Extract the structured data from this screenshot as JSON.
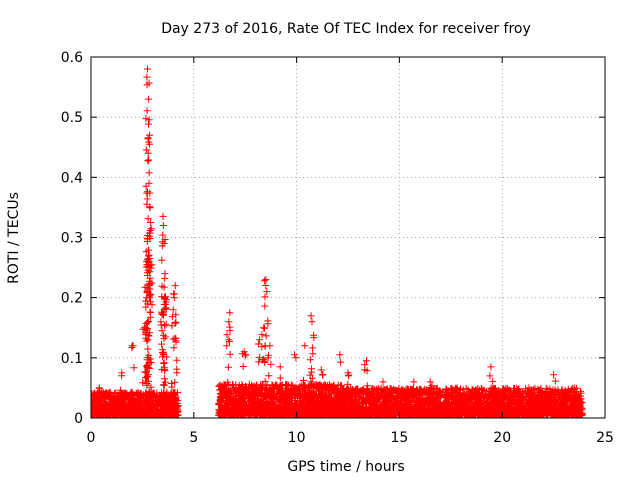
{
  "chart_data": {
    "type": "scatter",
    "title": "Day 273 of 2016, Rate Of TEC Index for receiver froy",
    "xlabel": "GPS time / hours",
    "ylabel": "ROTI / TECUs",
    "xlim": [
      0,
      25
    ],
    "ylim": [
      0,
      0.6
    ],
    "xticks": [
      "0",
      "5",
      "10",
      "15",
      "20",
      "25"
    ],
    "yticks": [
      "0",
      "0.1",
      "0.2",
      "0.3",
      "0.4",
      "0.5",
      "0.6"
    ],
    "grid": true,
    "marker": "plus",
    "series_color": "#ff0000",
    "data_gap": [
      4.25,
      6.2
    ],
    "peaks": [
      {
        "x": 0.4,
        "y": 0.05
      },
      {
        "x": 1.5,
        "y": 0.075
      },
      {
        "x": 2.05,
        "y": 0.12
      },
      {
        "x": 2.75,
        "y": 0.58
      },
      {
        "x": 2.8,
        "y": 0.53
      },
      {
        "x": 2.85,
        "y": 0.47
      },
      {
        "x": 2.78,
        "y": 0.44
      },
      {
        "x": 2.82,
        "y": 0.39
      },
      {
        "x": 2.9,
        "y": 0.325
      },
      {
        "x": 2.7,
        "y": 0.26
      },
      {
        "x": 2.72,
        "y": 0.2
      },
      {
        "x": 2.6,
        "y": 0.15
      },
      {
        "x": 3.5,
        "y": 0.335
      },
      {
        "x": 3.52,
        "y": 0.32
      },
      {
        "x": 3.55,
        "y": 0.29
      },
      {
        "x": 3.6,
        "y": 0.24
      },
      {
        "x": 3.58,
        "y": 0.2
      },
      {
        "x": 3.4,
        "y": 0.16
      },
      {
        "x": 4.1,
        "y": 0.22
      },
      {
        "x": 4.05,
        "y": 0.2
      },
      {
        "x": 4.0,
        "y": 0.18
      },
      {
        "x": 6.75,
        "y": 0.175
      },
      {
        "x": 6.7,
        "y": 0.16
      },
      {
        "x": 6.6,
        "y": 0.12
      },
      {
        "x": 7.45,
        "y": 0.11
      },
      {
        "x": 8.5,
        "y": 0.23
      },
      {
        "x": 8.55,
        "y": 0.21
      },
      {
        "x": 8.4,
        "y": 0.15
      },
      {
        "x": 8.7,
        "y": 0.12
      },
      {
        "x": 8.2,
        "y": 0.13
      },
      {
        "x": 9.2,
        "y": 0.085
      },
      {
        "x": 9.9,
        "y": 0.105
      },
      {
        "x": 10.4,
        "y": 0.12
      },
      {
        "x": 10.7,
        "y": 0.17
      },
      {
        "x": 10.75,
        "y": 0.16
      },
      {
        "x": 11.2,
        "y": 0.08
      },
      {
        "x": 12.1,
        "y": 0.105
      },
      {
        "x": 12.5,
        "y": 0.075
      },
      {
        "x": 13.4,
        "y": 0.095
      },
      {
        "x": 14.2,
        "y": 0.06
      },
      {
        "x": 15.7,
        "y": 0.06
      },
      {
        "x": 16.5,
        "y": 0.06
      },
      {
        "x": 17.8,
        "y": 0.05
      },
      {
        "x": 19.45,
        "y": 0.085
      },
      {
        "x": 19.4,
        "y": 0.07
      },
      {
        "x": 21.3,
        "y": 0.05
      },
      {
        "x": 22.5,
        "y": 0.072
      },
      {
        "x": 23.5,
        "y": 0.05
      }
    ],
    "clusters": [
      {
        "x_start": 0.0,
        "x_end": 4.25,
        "base": 0.03
      },
      {
        "x_start": 6.2,
        "x_end": 12.0,
        "base": 0.04
      },
      {
        "x_start": 12.0,
        "x_end": 23.9,
        "base": 0.035
      }
    ]
  }
}
